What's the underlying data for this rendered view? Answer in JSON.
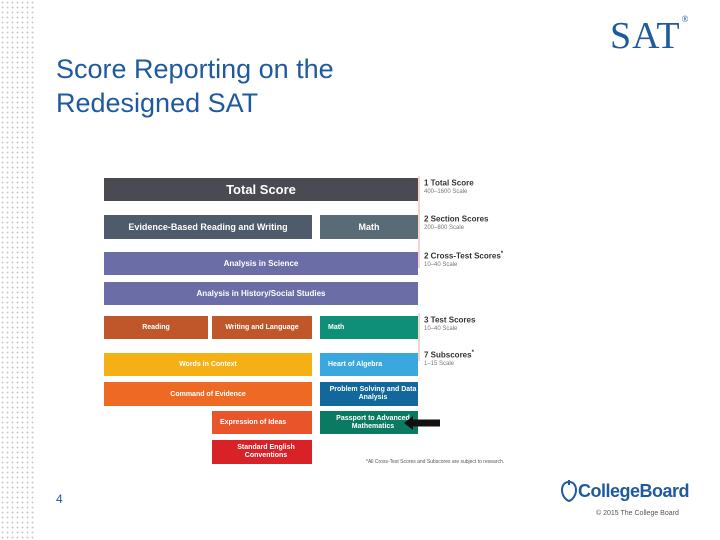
{
  "slide": {
    "title": "Score Reporting on the Redesigned SAT",
    "logo": "SAT",
    "logo_mark": "®",
    "page_number": "4",
    "brand": "CollegeBoard",
    "copyright": "© 2015 The College Board"
  },
  "figure": {
    "bars": [
      {
        "id": "total-score",
        "label": "Total Score",
        "color": "#4a4a52"
      },
      {
        "id": "ebrw",
        "label": "Evidence-Based Reading and Writing",
        "color": "#4f5b6a"
      },
      {
        "id": "math-section",
        "label": "Math",
        "color": "#5a6b78"
      },
      {
        "id": "analysis-science",
        "label": "Analysis in Science",
        "color": "#6b6ea6"
      },
      {
        "id": "analysis-history",
        "label": "Analysis in History/Social Studies",
        "color": "#6b6ea6"
      },
      {
        "id": "reading-test",
        "label": "Reading",
        "color": "#c0572a"
      },
      {
        "id": "writing-test",
        "label": "Writing and Language",
        "color": "#c0572a"
      },
      {
        "id": "math-test",
        "label": "Math",
        "color": "#0f8f78"
      },
      {
        "id": "words-in-context",
        "label": "Words in Context",
        "color": "#f5b114"
      },
      {
        "id": "heart-of-algebra",
        "label": "Heart of Algebra",
        "color": "#3aa8de"
      },
      {
        "id": "command-of-evidence",
        "label": "Command of Evidence",
        "color": "#ee6a24"
      },
      {
        "id": "problem-solving",
        "label": "Problem Solving and Data Analysis",
        "color": "#12689c"
      },
      {
        "id": "expression-of-ideas",
        "label": "Expression of Ideas",
        "color": "#e9542a"
      },
      {
        "id": "passport-advanced-math",
        "label": "Passport to Advanced Mathematics",
        "color": "#0b7a63"
      },
      {
        "id": "standard-english",
        "label": "Standard English Conventions",
        "color": "#d92228"
      }
    ],
    "legend": [
      {
        "title": "1 Total Score",
        "star": "",
        "scale": "400–1600 Scale"
      },
      {
        "title": "2 Section Scores",
        "star": "",
        "scale": "200–800 Scale"
      },
      {
        "title": "2 Cross-Test Scores",
        "star": "*",
        "scale": "10–40 Scale"
      },
      {
        "title": "3 Test Scores",
        "star": "",
        "scale": "10–40 Scale"
      },
      {
        "title": "7 Subscores",
        "star": "*",
        "scale": "1–15 Scale"
      }
    ],
    "footnote": "*All Cross-Test Scores and Subscores are subject to research."
  }
}
